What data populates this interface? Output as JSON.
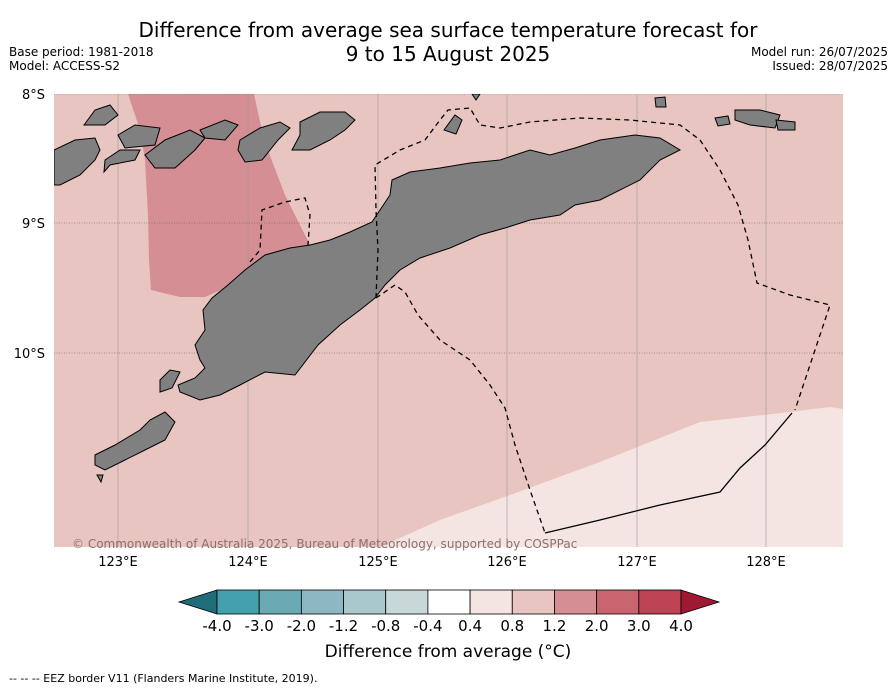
{
  "title_line1": "Difference from average sea surface temperature forecast for",
  "title_line2": "9 to 15 August 2025",
  "meta_left": [
    "Base period: 1981-2018",
    "Model: ACCESS-S2"
  ],
  "meta_right": [
    "Model run: 26/07/2025",
    "Issued: 28/07/2025"
  ],
  "lat_labels": [
    "8°S",
    "9°S",
    "10°S"
  ],
  "lon_labels": [
    "123°E",
    "124°E",
    "125°E",
    "126°E",
    "127°E",
    "128°E"
  ],
  "copyright": "© Commonwealth of Australia 2025, Bureau of Meteorology, supported by COSPPac",
  "colorbar": {
    "ticks": [
      "-4.0",
      "-3.0",
      "-2.0",
      "-1.2",
      "-0.8",
      "-0.4",
      "0.4",
      "0.8",
      "1.2",
      "2.0",
      "3.0",
      "4.0"
    ],
    "colors": [
      "#1f6d78",
      "#45a0ad",
      "#6aaab5",
      "#8bb8c1",
      "#a8c8cb",
      "#c8d8d8",
      "#ffffff",
      "#f5e5e2",
      "#e8c5c0",
      "#d48e94",
      "#c9656f",
      "#bf4453",
      "#9e1a32"
    ],
    "label": "Difference from average (°C)"
  },
  "footnote": "--  --  -- EEZ border V11 (Flanders Marine Institute, 2019).",
  "colors": {
    "land": "#808080",
    "anomaly_08_12": "#e8c5c0",
    "anomaly_12_20": "#d48e94",
    "anomaly_04_08": "#f5e5e2"
  }
}
